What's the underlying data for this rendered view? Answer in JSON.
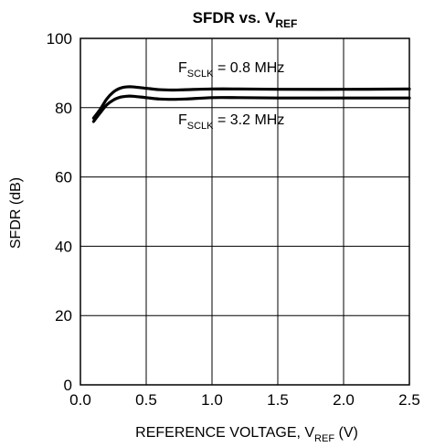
{
  "chart_data": {
    "type": "line",
    "title": {
      "main": "SFDR vs. V",
      "sub": "REF"
    },
    "xlabel": {
      "main": "REFERENCE VOLTAGE, V",
      "sub": "REF",
      "suffix": " (V)"
    },
    "ylabel": "SFDR (dB)",
    "xlim": [
      0,
      2.5
    ],
    "ylim": [
      0,
      100
    ],
    "xticks": [
      0,
      0.5,
      1.0,
      1.5,
      2.0,
      2.5
    ],
    "xtick_labels": [
      "0.0",
      "0.5",
      "1.0",
      "1.5",
      "2.0",
      "2.5"
    ],
    "yticks": [
      0,
      20,
      40,
      60,
      80,
      100
    ],
    "ytick_labels": [
      "0",
      "20",
      "40",
      "60",
      "80",
      "100"
    ],
    "grid": true,
    "series": [
      {
        "name": "FSCLK = 0.8 MHz",
        "x": [
          0.1,
          0.15,
          0.2,
          0.25,
          0.3,
          0.35,
          0.4,
          0.5,
          0.6,
          0.7,
          0.8,
          1.0,
          1.2,
          1.5,
          2.0,
          2.5
        ],
        "y": [
          77,
          79.5,
          82.5,
          84.5,
          85.6,
          86.0,
          86.0,
          85.6,
          85.2,
          85.1,
          85.2,
          85.4,
          85.4,
          85.3,
          85.3,
          85.4
        ]
      },
      {
        "name": "FSCLK = 3.2 MHz",
        "x": [
          0.1,
          0.15,
          0.2,
          0.25,
          0.3,
          0.35,
          0.4,
          0.5,
          0.6,
          0.7,
          0.8,
          1.0,
          1.2,
          1.5,
          2.0,
          2.5
        ],
        "y": [
          76,
          78.5,
          80.8,
          82.2,
          83.0,
          83.3,
          83.3,
          82.9,
          82.5,
          82.4,
          82.5,
          82.9,
          82.9,
          82.8,
          82.8,
          82.8
        ]
      }
    ],
    "annotations": [
      {
        "main": "F",
        "sub": "SCLK",
        "rest": " = 0.8 MHz"
      },
      {
        "main": "F",
        "sub": "SCLK",
        "rest": " = 3.2 MHz"
      }
    ],
    "line_color": "#000000"
  }
}
